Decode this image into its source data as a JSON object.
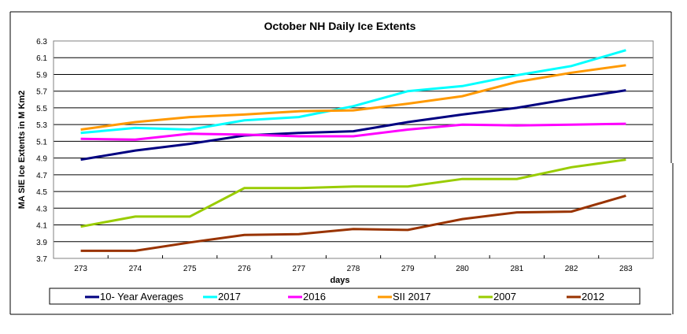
{
  "chart_data": {
    "type": "line",
    "title": "October NH Daily  Ice Extents",
    "xlabel": "days",
    "ylabel": "MA SIE Ice Extents in M Km2",
    "x": [
      273,
      274,
      275,
      276,
      277,
      278,
      279,
      280,
      281,
      282,
      283
    ],
    "x_tick_labels": [
      "273",
      "274",
      "275",
      "276",
      "277",
      "278",
      "279",
      "280",
      "281",
      "282",
      "283"
    ],
    "ylim": [
      3.7,
      6.3
    ],
    "y_ticks": [
      "6.3",
      "6.1",
      "5.9",
      "5.7",
      "5.5",
      "5.3",
      "5.1",
      "4.9",
      "4.7",
      "4.5",
      "4.3",
      "4.1",
      "3.9",
      "3.7"
    ],
    "y_tick_values": [
      6.3,
      6.1,
      5.9,
      5.7,
      5.5,
      5.3,
      5.1,
      4.9,
      4.7,
      4.5,
      4.3,
      4.1,
      3.9,
      3.7
    ],
    "grid": true,
    "legend_position": "bottom",
    "series": [
      {
        "name": "10- Year Averages",
        "color": "#000080",
        "values": [
          4.88,
          4.99,
          5.07,
          5.17,
          5.2,
          5.22,
          5.33,
          5.42,
          5.5,
          5.61,
          5.71
        ]
      },
      {
        "name": "2017",
        "color": "#00FFFF",
        "values": [
          5.2,
          5.26,
          5.24,
          5.35,
          5.39,
          5.52,
          5.7,
          5.76,
          5.89,
          6.0,
          6.19
        ]
      },
      {
        "name": "2016",
        "color": "#FF00FF",
        "values": [
          5.13,
          5.12,
          5.19,
          5.18,
          5.16,
          5.16,
          5.24,
          5.3,
          5.29,
          5.3,
          5.31
        ]
      },
      {
        "name": "SII 2017",
        "color": "#FF9900",
        "values": [
          5.24,
          5.33,
          5.39,
          5.42,
          5.46,
          5.47,
          5.55,
          5.64,
          5.81,
          5.92,
          6.01
        ]
      },
      {
        "name": "2007",
        "color": "#99CC00",
        "values": [
          4.08,
          4.2,
          4.2,
          4.54,
          4.54,
          4.56,
          4.56,
          4.65,
          4.65,
          4.79,
          4.88
        ]
      },
      {
        "name": "2012",
        "color": "#993300",
        "values": [
          3.79,
          3.79,
          3.89,
          3.98,
          3.99,
          4.05,
          4.04,
          4.17,
          4.25,
          4.26,
          4.45
        ]
      }
    ]
  }
}
